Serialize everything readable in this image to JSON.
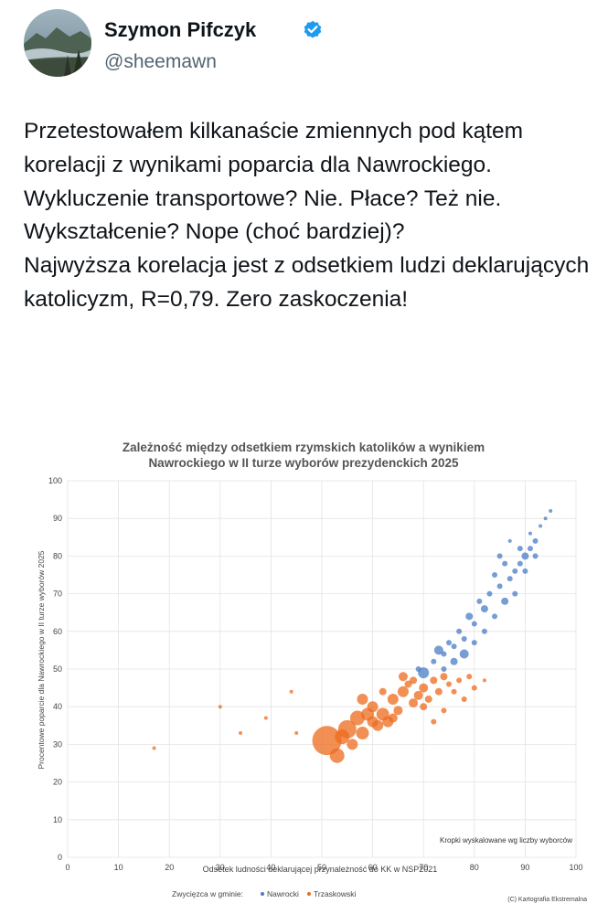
{
  "author": {
    "name": "Szymon Pifczyk",
    "handle": "@sheemawn",
    "verified": true
  },
  "tweet": {
    "paragraphs": [
      "Przetestowałem kilkanaście zmiennych pod kątem korelacji z wynikami poparcia dla Nawrockiego. Wykluczenie transportowe? Nie. Płace? Też nie. Wykształcenie? Nope (choć bardziej)?",
      "Najwyższa korelacja jest z odsetkiem ludzi deklarujących katolicyzm, R=0,79. Zero zaskoczenia!"
    ]
  },
  "colors": {
    "nawrocki": "#4a7cc7",
    "trzaskowski": "#ee6a1c",
    "verified": "#1d9bf0",
    "handle": "#536471"
  },
  "chart_data": {
    "type": "scatter",
    "title": "Zależność między odsetkiem rzymskich katolików a wynikiem Nawrockiego w II turze wyborów prezydenckich 2025",
    "xlabel": "Odsetek ludności deklarującej przynależność do KK w NSP2021",
    "ylabel": "Procentowe poparcie dla Nawrockiego w II turze wyborów 2025",
    "xlim": [
      0,
      100
    ],
    "ylim": [
      0,
      100
    ],
    "xticks": [
      "0",
      "10",
      "20",
      "30",
      "40",
      "50",
      "60",
      "70",
      "80",
      "90",
      "100"
    ],
    "yticks": [
      "0",
      "10",
      "20",
      "30",
      "40",
      "50",
      "60",
      "70",
      "80",
      "90",
      "100"
    ],
    "grid": true,
    "note": "Kropki wyskalowane wg liczby wyborców",
    "legend_title": "Zwycięzca w gminie:",
    "legend_position": "bottom",
    "credit": "(C) Kartografia Ekstremalna",
    "series": [
      {
        "name": "Nawrocki",
        "color": "#4a7cc7",
        "points": [
          [
            88,
            76
          ],
          [
            90,
            80
          ],
          [
            92,
            84
          ],
          [
            85,
            72
          ],
          [
            82,
            66
          ],
          [
            80,
            62
          ],
          [
            78,
            58
          ],
          [
            76,
            56
          ],
          [
            74,
            54
          ],
          [
            72,
            52
          ],
          [
            86,
            78
          ],
          [
            89,
            82
          ],
          [
            91,
            86
          ],
          [
            87,
            74
          ],
          [
            83,
            70
          ],
          [
            81,
            68
          ],
          [
            79,
            64
          ],
          [
            77,
            60
          ],
          [
            75,
            57
          ],
          [
            73,
            55
          ],
          [
            84,
            75
          ],
          [
            93,
            88
          ],
          [
            94,
            90
          ],
          [
            95,
            92
          ],
          [
            90,
            76
          ],
          [
            88,
            70
          ],
          [
            86,
            68
          ],
          [
            84,
            64
          ],
          [
            82,
            60
          ],
          [
            80,
            57
          ],
          [
            78,
            54
          ],
          [
            76,
            52
          ],
          [
            74,
            50
          ],
          [
            70,
            49
          ],
          [
            69,
            50
          ],
          [
            85,
            80
          ],
          [
            87,
            84
          ],
          [
            89,
            78
          ],
          [
            91,
            82
          ],
          [
            92,
            80
          ]
        ],
        "sizes": [
          3,
          4,
          3,
          3,
          4,
          3,
          3,
          3,
          3,
          3,
          3,
          3,
          2,
          3,
          3,
          3,
          4,
          3,
          3,
          5,
          3,
          2,
          2,
          2,
          3,
          3,
          4,
          3,
          3,
          3,
          5,
          4,
          3,
          6,
          3,
          3,
          2,
          3,
          3,
          3
        ]
      },
      {
        "name": "Trzaskowski",
        "color": "#ee6a1c",
        "points": [
          [
            51,
            31
          ],
          [
            53,
            27
          ],
          [
            55,
            34
          ],
          [
            57,
            37
          ],
          [
            58,
            33
          ],
          [
            60,
            40
          ],
          [
            62,
            38
          ],
          [
            64,
            42
          ],
          [
            66,
            44
          ],
          [
            68,
            41
          ],
          [
            70,
            45
          ],
          [
            72,
            47
          ],
          [
            74,
            48
          ],
          [
            63,
            36
          ],
          [
            61,
            35
          ],
          [
            59,
            38
          ],
          [
            65,
            39
          ],
          [
            67,
            46
          ],
          [
            69,
            43
          ],
          [
            71,
            42
          ],
          [
            73,
            44
          ],
          [
            75,
            46
          ],
          [
            77,
            47
          ],
          [
            79,
            48
          ],
          [
            56,
            30
          ],
          [
            54,
            32
          ],
          [
            60,
            36
          ],
          [
            66,
            48
          ],
          [
            76,
            44
          ],
          [
            78,
            42
          ],
          [
            80,
            45
          ],
          [
            62,
            44
          ],
          [
            64,
            37
          ],
          [
            70,
            40
          ],
          [
            72,
            36
          ],
          [
            74,
            39
          ],
          [
            17,
            29
          ],
          [
            30,
            40
          ],
          [
            44,
            44
          ],
          [
            34,
            33
          ],
          [
            39,
            37
          ],
          [
            58,
            42
          ],
          [
            68,
            47
          ],
          [
            82,
            47
          ],
          [
            45,
            33
          ]
        ],
        "sizes": [
          16,
          8,
          10,
          8,
          7,
          6,
          7,
          6,
          6,
          5,
          5,
          4,
          4,
          6,
          6,
          7,
          5,
          4,
          5,
          4,
          4,
          3,
          3,
          3,
          6,
          8,
          6,
          5,
          3,
          3,
          3,
          4,
          5,
          4,
          3,
          3,
          2,
          2,
          2,
          2,
          2,
          6,
          4,
          2,
          2
        ]
      }
    ]
  }
}
